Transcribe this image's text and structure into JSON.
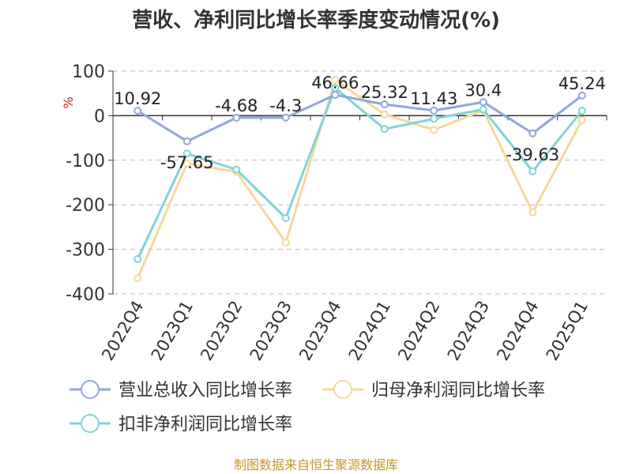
{
  "colors": {
    "revenue": "#8fa8d8",
    "net_profit": "#f5d89a",
    "deducted_net_profit": "#7fd3d8",
    "grid": "#bbbbbb",
    "axis": "#333333",
    "source": "#c8952a",
    "unit": "#cc2222"
  },
  "chart_data": {
    "type": "line",
    "title": "营收、净利同比增长率季度变动情况(%)",
    "ylabel": "%",
    "ylim": [
      -400,
      100
    ],
    "yticks": [
      "100",
      "0",
      "-100",
      "-200",
      "-300",
      "-400"
    ],
    "categories": [
      "2022Q4",
      "2023Q1",
      "2023Q2",
      "2023Q3",
      "2023Q4",
      "2024Q1",
      "2024Q2",
      "2024Q3",
      "2024Q4",
      "2025Q1"
    ],
    "grid": true,
    "legend_position": "bottom",
    "series": [
      {
        "name": "营业总收入同比增长率",
        "values": [
          10.92,
          -57.65,
          -4.68,
          -4.3,
          46.66,
          25.32,
          11.43,
          30.4,
          -39.63,
          45.24
        ],
        "labels": [
          "10.92",
          "-57.65",
          "-4.68",
          "-4.3",
          "46.66",
          "25.32",
          "11.43",
          "30.4",
          "-39.63",
          "45.24"
        ]
      },
      {
        "name": "归母净利润同比增长率",
        "values": [
          -365,
          -107,
          -126,
          -285,
          80,
          3,
          -32,
          12,
          -217,
          -10
        ]
      },
      {
        "name": "扣非净利润同比增长率",
        "values": [
          -322,
          -85,
          -121,
          -230,
          62,
          -30,
          -7,
          14,
          -125,
          11
        ]
      }
    ]
  },
  "source_text": "制图数据来自恒生聚源数据库"
}
